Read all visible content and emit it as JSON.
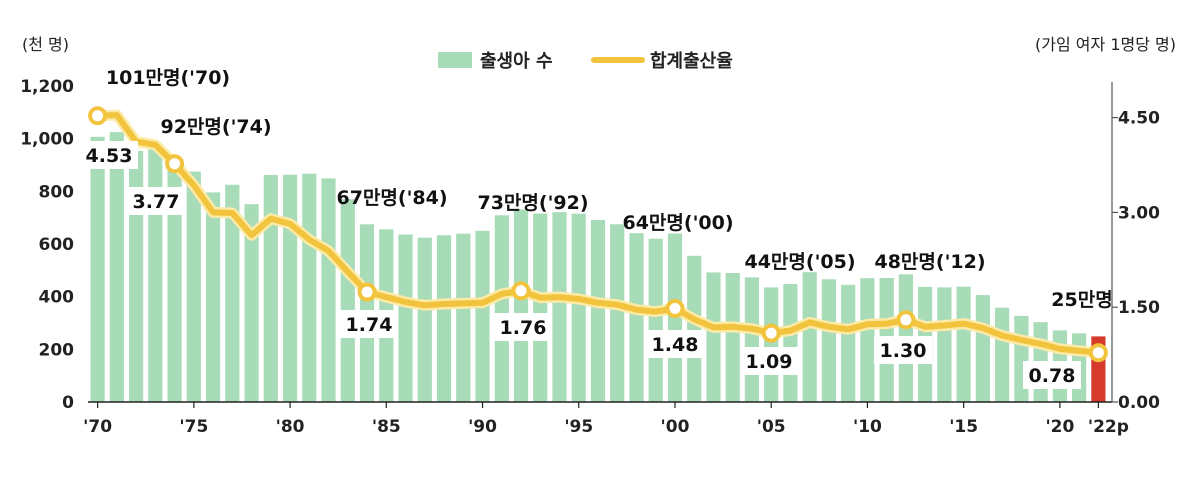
{
  "chart_data": {
    "type": "bar",
    "categories": [
      "'70",
      "'71",
      "'72",
      "'73",
      "'74",
      "'75",
      "'76",
      "'77",
      "'78",
      "'79",
      "'80",
      "'81",
      "'82",
      "'83",
      "'84",
      "'85",
      "'86",
      "'87",
      "'88",
      "'89",
      "'90",
      "'91",
      "'92",
      "'93",
      "'94",
      "'95",
      "'96",
      "'97",
      "'98",
      "'99",
      "'00",
      "'01",
      "'02",
      "'03",
      "'04",
      "'05",
      "'06",
      "'07",
      "'08",
      "'09",
      "'10",
      "'11",
      "'12",
      "'13",
      "'14",
      "'15",
      "'16",
      "'17",
      "'18",
      "'19",
      "'20",
      "'21",
      "'22p"
    ],
    "x_tick_labels": [
      "'70",
      "'75",
      "'80",
      "'85",
      "'90",
      "'95",
      "'00",
      "'05",
      "'10",
      "'15",
      "'20",
      "'22p"
    ],
    "x_tick_categories": [
      "'70",
      "'75",
      "'80",
      "'85",
      "'90",
      "'95",
      "'00",
      "'05",
      "'10",
      "'15",
      "'20",
      "'22p"
    ],
    "series": [
      {
        "name": "출생아 수",
        "axis": "left",
        "color": "#a8dbb7",
        "highlight_color": "#d63a2b",
        "highlight_category": "'22p",
        "values": [
          1007,
          1025,
          953,
          966,
          923,
          875,
          796,
          825,
          751,
          862,
          863,
          867,
          849,
          770,
          675,
          656,
          636,
          624,
          633,
          639,
          650,
          709,
          731,
          716,
          721,
          715,
          691,
          675,
          641,
          620,
          640,
          555,
          492,
          490,
          473,
          435,
          448,
          493,
          466,
          445,
          470,
          471,
          485,
          437,
          435,
          438,
          406,
          358,
          327,
          303,
          272,
          261,
          249
        ]
      },
      {
        "name": "합계출산율",
        "axis": "right",
        "color": "#f2c43d",
        "values": [
          4.53,
          4.54,
          4.12,
          4.07,
          3.77,
          3.43,
          3.0,
          2.99,
          2.64,
          2.9,
          2.82,
          2.57,
          2.39,
          2.06,
          1.74,
          1.66,
          1.58,
          1.53,
          1.55,
          1.56,
          1.57,
          1.71,
          1.76,
          1.65,
          1.66,
          1.63,
          1.57,
          1.54,
          1.46,
          1.43,
          1.48,
          1.31,
          1.18,
          1.19,
          1.16,
          1.09,
          1.13,
          1.26,
          1.19,
          1.15,
          1.23,
          1.24,
          1.3,
          1.19,
          1.21,
          1.24,
          1.17,
          1.05,
          0.98,
          0.92,
          0.84,
          0.81,
          0.78
        ],
        "markers": [
          "'70",
          "'74",
          "'84",
          "'92",
          "'00",
          "'05",
          "'12",
          "'22p"
        ]
      }
    ],
    "left_axis": {
      "unit": "(천 명)",
      "ylim": [
        0,
        1200
      ],
      "ticks": [
        0,
        200,
        400,
        600,
        800,
        1000,
        1200
      ],
      "tick_labels": [
        "0",
        "200",
        "400",
        "600",
        "800",
        "1,000",
        "1,200"
      ]
    },
    "right_axis": {
      "unit": "(가임 여자 1명당 명)",
      "ylim": [
        0,
        5
      ],
      "ticks": [
        0,
        1.5,
        3,
        4.5
      ],
      "tick_labels": [
        "0.00",
        "1.50",
        "3.00",
        "4.50"
      ]
    },
    "legend_position": "top-center",
    "bar_annotations": [
      {
        "category": "'70",
        "text": "101만명('70)"
      },
      {
        "category": "'74",
        "text": "92만명('74)"
      },
      {
        "category": "'84",
        "text": "67만명('84)"
      },
      {
        "category": "'92",
        "text": "73만명('92)"
      },
      {
        "category": "'00",
        "text": "64만명('00)"
      },
      {
        "category": "'05",
        "text": "44만명('05)"
      },
      {
        "category": "'12",
        "text": "48만명('12)"
      },
      {
        "category": "'22p",
        "text": "25만명"
      }
    ],
    "rate_labels": [
      {
        "category": "'70",
        "text": "4.53"
      },
      {
        "category": "'74",
        "text": "3.77"
      },
      {
        "category": "'84",
        "text": "1.74"
      },
      {
        "category": "'92",
        "text": "1.76"
      },
      {
        "category": "'00",
        "text": "1.48"
      },
      {
        "category": "'05",
        "text": "1.09"
      },
      {
        "category": "'12",
        "text": "1.30"
      },
      {
        "category": "'22p",
        "text": "0.78"
      }
    ],
    "grid": false
  }
}
